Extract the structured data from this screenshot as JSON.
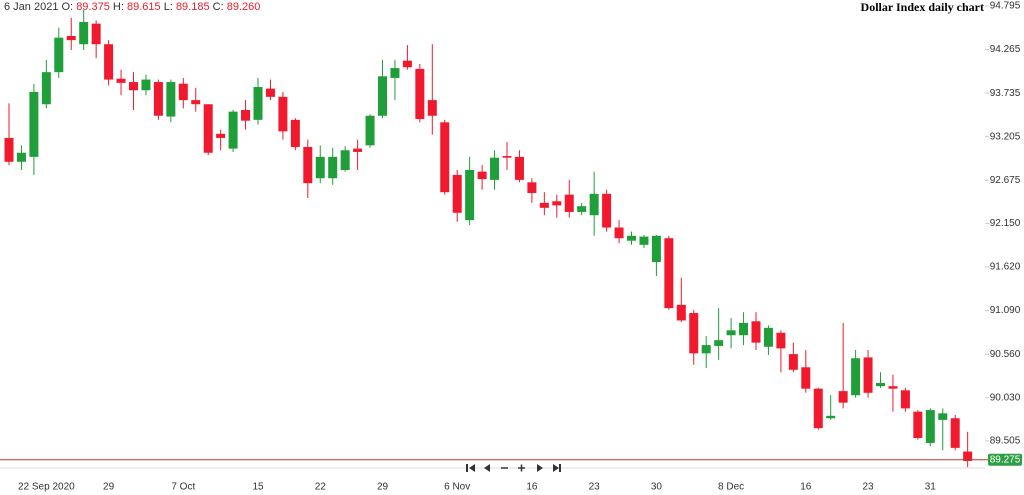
{
  "header": {
    "date": "6 Jan 2021",
    "items": [
      {
        "label": "O:",
        "value": "89.375"
      },
      {
        "label": "H:",
        "value": "89.615"
      },
      {
        "label": "L:",
        "value": "89.185"
      },
      {
        "label": "C:",
        "value": "89.260"
      }
    ]
  },
  "chart_data": {
    "type": "candlestick",
    "title": "Dollar Index daily chart",
    "categories": [
      null,
      null,
      null,
      "22 Sep 2020",
      null,
      null,
      null,
      null,
      "29",
      null,
      null,
      null,
      null,
      null,
      "7 Oct",
      null,
      null,
      null,
      null,
      null,
      "15",
      null,
      null,
      null,
      null,
      "22",
      null,
      null,
      null,
      null,
      "29",
      null,
      null,
      null,
      null,
      null,
      "6 Nov",
      null,
      null,
      null,
      null,
      null,
      "16",
      null,
      null,
      null,
      null,
      "23",
      null,
      null,
      null,
      null,
      "30",
      null,
      null,
      null,
      null,
      null,
      "8 Dec",
      null,
      null,
      null,
      null,
      null,
      "16",
      null,
      null,
      null,
      null,
      "23",
      null,
      null,
      null,
      null,
      "31",
      null,
      null,
      null
    ],
    "open": [
      93.19,
      92.9,
      92.96,
      93.6,
      93.99,
      94.43,
      94.33,
      94.58,
      94.33,
      93.91,
      93.87,
      93.77,
      93.87,
      93.45,
      93.85,
      93.65,
      93.6,
      93.24,
      93.06,
      93.53,
      93.41,
      93.79,
      93.69,
      93.41,
      93.08,
      92.7,
      92.7,
      92.8,
      93.06,
      93.1,
      93.46,
      93.92,
      94.13,
      94.03,
      93.65,
      93.38,
      92.74,
      92.19,
      92.78,
      92.68,
      92.97,
      92.96,
      92.65,
      92.4,
      92.42,
      92.5,
      92.29,
      92.25,
      92.51,
      92.1,
      91.94,
      91.89,
      91.68,
      91.97,
      91.16,
      91.06,
      90.57,
      90.66,
      90.79,
      90.79,
      90.96,
      90.65,
      90.82,
      90.56,
      90.4,
      90.14,
      89.78,
      90.11,
      90.06,
      90.52,
      90.17,
      90.17,
      90.12,
      89.86,
      89.48,
      89.76,
      89.78,
      89.375
    ],
    "high": [
      93.61,
      93.1,
      93.85,
      94.14,
      94.53,
      94.65,
      94.75,
      94.62,
      94.38,
      94.02,
      93.99,
      93.96,
      93.9,
      93.9,
      93.92,
      93.8,
      93.6,
      93.29,
      93.53,
      93.65,
      93.92,
      93.9,
      93.75,
      93.43,
      93.17,
      93.1,
      93.07,
      93.09,
      93.17,
      93.48,
      94.14,
      94.14,
      94.32,
      94.09,
      94.33,
      93.41,
      92.8,
      92.96,
      92.86,
      93.04,
      93.14,
      93.04,
      92.7,
      92.53,
      92.5,
      92.68,
      92.4,
      92.78,
      92.56,
      92.19,
      92.05,
      92.01,
      92.01,
      92.0,
      91.49,
      91.1,
      90.78,
      91.12,
      91.0,
      91.07,
      91.07,
      90.91,
      90.85,
      90.7,
      90.61,
      90.15,
      90.06,
      90.94,
      90.61,
      90.61,
      90.34,
      90.31,
      90.15,
      89.88,
      89.9,
      89.9,
      89.82,
      89.615
    ],
    "low": [
      92.86,
      92.8,
      92.74,
      93.55,
      93.92,
      94.26,
      94.26,
      94.16,
      93.83,
      93.71,
      93.53,
      93.71,
      93.41,
      93.38,
      93.55,
      93.51,
      92.98,
      93.04,
      93.02,
      93.29,
      93.35,
      93.65,
      93.17,
      93.04,
      92.46,
      92.64,
      92.62,
      92.78,
      92.8,
      93.07,
      93.43,
      93.65,
      94.02,
      93.38,
      93.23,
      92.5,
      92.17,
      92.13,
      92.56,
      92.56,
      92.8,
      92.65,
      92.4,
      92.25,
      92.22,
      92.22,
      92.25,
      92.0,
      92.05,
      91.91,
      91.89,
      91.85,
      91.51,
      91.1,
      90.95,
      90.43,
      90.39,
      90.49,
      90.63,
      90.67,
      90.61,
      90.55,
      90.34,
      90.34,
      90.09,
      89.64,
      89.76,
      89.9,
      90.03,
      90.03,
      90.15,
      89.86,
      89.86,
      89.52,
      89.44,
      89.39,
      89.39,
      89.185
    ],
    "close": [
      92.9,
      93.01,
      93.75,
      93.99,
      94.41,
      94.38,
      94.6,
      94.33,
      93.9,
      93.86,
      93.77,
      93.9,
      93.46,
      93.87,
      93.65,
      93.6,
      93.01,
      93.19,
      93.51,
      93.4,
      93.81,
      93.69,
      93.27,
      93.08,
      92.64,
      92.96,
      92.96,
      93.04,
      93.02,
      93.46,
      93.94,
      94.04,
      94.05,
      93.42,
      93.46,
      92.53,
      92.28,
      92.8,
      92.69,
      92.95,
      92.95,
      92.68,
      92.52,
      92.34,
      92.37,
      92.29,
      92.36,
      92.51,
      92.1,
      91.97,
      92.0,
      91.99,
      92.0,
      91.12,
      90.97,
      90.57,
      90.67,
      90.73,
      90.85,
      90.94,
      90.7,
      90.88,
      90.63,
      90.37,
      90.14,
      89.66,
      89.81,
      89.97,
      90.51,
      90.09,
      90.21,
      90.14,
      89.9,
      89.54,
      89.88,
      89.84,
      89.42,
      89.26
    ],
    "up_color": "#1f9e3a",
    "down_color": "#f0192d",
    "ylim": [
      89.175,
      94.868
    ],
    "yticks": [
      94.795,
      94.265,
      93.735,
      93.205,
      92.675,
      {
        "value": 92.15,
        "label": "92.150"
      },
      {
        "value": 91.62,
        "label": "91.620"
      },
      {
        "value": 91.09,
        "label": "91.090"
      },
      {
        "value": 90.56,
        "label": "90.560"
      },
      {
        "value": 90.03,
        "label": "90.030"
      },
      89.505
    ],
    "last_price": 89.275,
    "last_price_color": "#2ea043",
    "last_price_line_color": "#c0392b"
  }
}
